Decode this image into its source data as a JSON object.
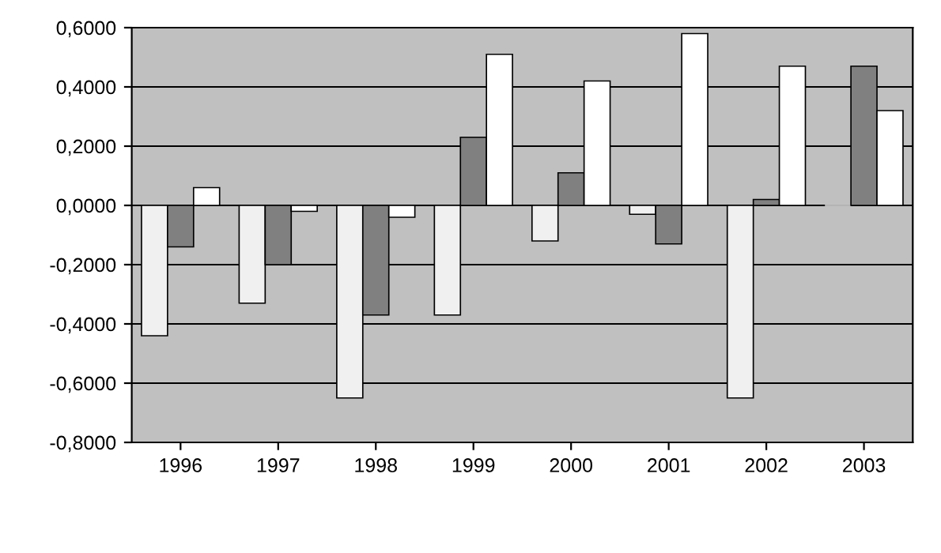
{
  "chart_data": {
    "type": "bar",
    "categories": [
      "1996",
      "1997",
      "1998",
      "1999",
      "2000",
      "2001",
      "2002",
      "2003"
    ],
    "series": [
      {
        "color": "#f0f0f0",
        "values": [
          -0.44,
          -0.33,
          -0.65,
          -0.37,
          -0.12,
          -0.03,
          -0.65,
          0.0
        ]
      },
      {
        "color": "#808080",
        "values": [
          -0.14,
          -0.2,
          -0.37,
          0.23,
          0.11,
          -0.13,
          0.02,
          0.47
        ]
      },
      {
        "color": "#ffffff",
        "values": [
          0.06,
          -0.02,
          -0.04,
          0.51,
          0.42,
          0.58,
          0.47,
          0.32
        ]
      }
    ],
    "ylim": [
      -0.8,
      0.6
    ],
    "yticks": [
      {
        "value": -0.8,
        "label": "-0,8000"
      },
      {
        "value": -0.6,
        "label": "-0,6000"
      },
      {
        "value": -0.4,
        "label": "-0,4000"
      },
      {
        "value": -0.2,
        "label": "-0,2000"
      },
      {
        "value": 0,
        "label": "0,0000"
      },
      {
        "value": 0.2,
        "label": "0,2000"
      },
      {
        "value": 0.4,
        "label": "0,4000"
      },
      {
        "value": 0.6,
        "label": "0,6000"
      }
    ],
    "grid": "y"
  }
}
